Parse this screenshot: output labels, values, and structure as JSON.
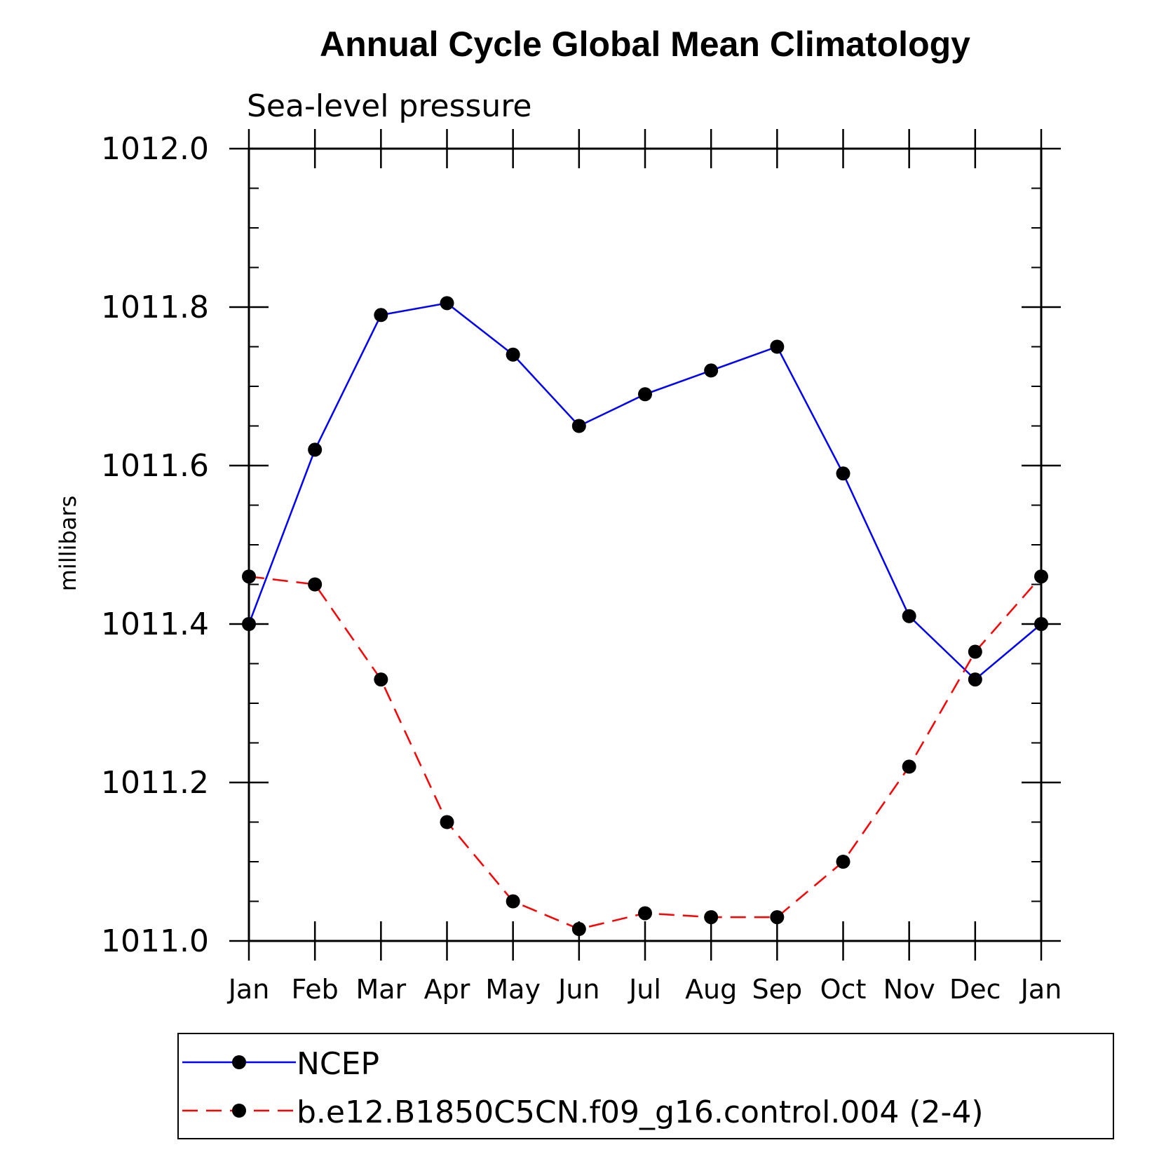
{
  "chart_data": {
    "type": "line",
    "title": "Annual Cycle Global Mean Climatology",
    "subtitle": "Sea-level pressure",
    "xlabel": "",
    "ylabel": "millibars",
    "categories": [
      "Jan",
      "Feb",
      "Mar",
      "Apr",
      "May",
      "Jun",
      "Jul",
      "Aug",
      "Sep",
      "Oct",
      "Nov",
      "Dec",
      "Jan"
    ],
    "ylim": [
      1011.0,
      1012.0
    ],
    "y_ticks": [
      "1011.0",
      "1011.2",
      "1011.4",
      "1011.6",
      "1011.8",
      "1012.0"
    ],
    "y_tick_values": [
      1011.0,
      1011.2,
      1011.4,
      1011.6,
      1011.8,
      1012.0
    ],
    "legend_position": "bottom",
    "grid": false,
    "series": [
      {
        "name": "NCEP",
        "color": "#0000ff",
        "line_style": "solid",
        "marker": "filled-circle",
        "values": [
          1011.4,
          1011.62,
          1011.79,
          1011.805,
          1011.74,
          1011.65,
          1011.69,
          1011.72,
          1011.75,
          1011.59,
          1011.41,
          1011.33,
          1011.4
        ]
      },
      {
        "name": "b.e12.B1850C5CN.f09_g16.control.004 (2-4)",
        "color": "#ff0000",
        "line_style": "dashed",
        "marker": "filled-circle",
        "values": [
          1011.46,
          1011.45,
          1011.33,
          1011.15,
          1011.05,
          1011.015,
          1011.035,
          1011.03,
          1011.03,
          1011.1,
          1011.22,
          1011.365,
          1011.46
        ]
      }
    ]
  }
}
